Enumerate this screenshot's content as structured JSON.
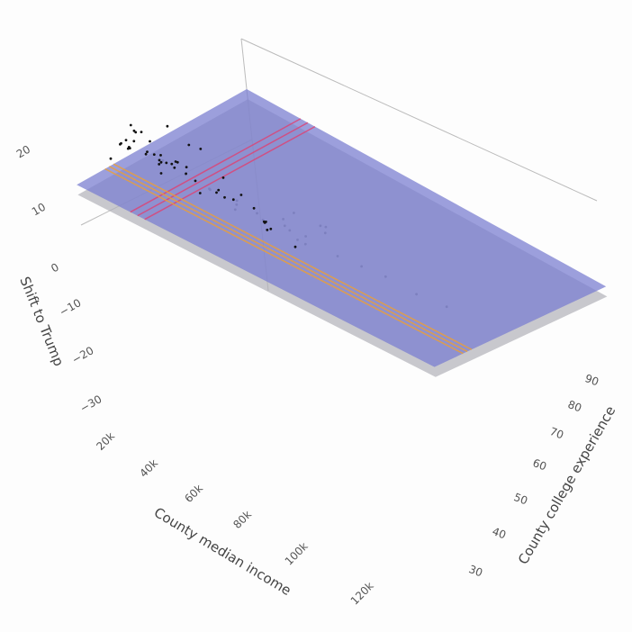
{
  "chart_data": {
    "type": "scatter3d",
    "axes": {
      "x": {
        "title": "County median income",
        "range": [
          20000,
          120000
        ],
        "ticks": [
          20000,
          40000,
          60000,
          80000,
          100000,
          120000
        ],
        "tick_labels": [
          "20k",
          "40k",
          "60k",
          "80k",
          "100k",
          "120k"
        ]
      },
      "y": {
        "title": "County college experience",
        "range": [
          30,
          90
        ],
        "ticks": [
          30,
          40,
          50,
          60,
          70,
          80,
          90
        ],
        "tick_labels": [
          "30",
          "40",
          "50",
          "60",
          "70",
          "80",
          "90"
        ]
      },
      "z": {
        "title": "Shift to Trump",
        "range": [
          -30,
          20
        ],
        "ticks": [
          20,
          10,
          0,
          -10,
          -20,
          -30
        ],
        "tick_labels": [
          "20",
          "10",
          "0",
          "-10",
          "-20",
          "-30"
        ]
      }
    },
    "surfaces": [
      {
        "color": "#b0b0b8",
        "opacity": 0.7,
        "corners_z": {
          "x0y0": 6,
          "x1y0": 2,
          "x0y1": 8,
          "x1y1": 1
        }
      },
      {
        "color": "#7b7fd0",
        "opacity": 0.75,
        "corners_z": {
          "x0y0": 8,
          "x1y0": 4,
          "x0y1": 10,
          "x1y1": 3
        }
      }
    ],
    "lines": [
      {
        "color": "#e04070",
        "along": "y",
        "x": 35000
      },
      {
        "color": "#f0a030",
        "along": "x",
        "y": 40
      }
    ],
    "points": {
      "color": "#111111",
      "x": [
        30,
        32,
        35,
        38,
        40,
        42,
        45,
        48,
        50,
        52,
        55,
        34,
        36,
        39,
        41,
        44,
        47,
        33,
        37,
        43,
        46,
        49,
        31,
        28,
        26,
        53,
        58,
        60,
        62,
        65,
        40,
        42,
        44,
        38,
        36,
        35,
        50,
        48,
        46,
        54,
        57,
        29,
        27,
        45,
        43,
        41,
        39,
        37,
        60,
        64,
        68,
        70,
        75,
        80,
        85,
        90,
        55,
        52,
        47,
        33,
        31,
        25,
        24,
        22,
        36,
        44,
        50,
        58,
        66,
        72
      ],
      "y": [
        35,
        38,
        40,
        42,
        36,
        44,
        39,
        41,
        37,
        43,
        45,
        48,
        33,
        32,
        46,
        50,
        34,
        52,
        31,
        30,
        47,
        49,
        36,
        40,
        42,
        51,
        55,
        46,
        44,
        41,
        60,
        58,
        62,
        54,
        56,
        65,
        57,
        66,
        70,
        63,
        68,
        44,
        38,
        35,
        33,
        31,
        37,
        39,
        48,
        52,
        50,
        58,
        60,
        62,
        66,
        70,
        72,
        75,
        74,
        46,
        50,
        45,
        55,
        40,
        30,
        32,
        33,
        36,
        40,
        42
      ],
      "z": [
        18,
        20,
        16,
        22,
        15,
        19,
        17,
        21,
        14,
        16,
        13,
        12,
        23,
        24,
        11,
        9,
        20,
        8,
        25,
        24,
        10,
        9,
        17,
        15,
        14,
        8,
        5,
        9,
        10,
        12,
        2,
        4,
        1,
        6,
        5,
        -2,
        3,
        0,
        -4,
        4,
        1,
        13,
        16,
        18,
        19,
        21,
        17,
        15,
        7,
        5,
        6,
        2,
        1,
        0,
        -3,
        -5,
        -1,
        -4,
        -6,
        12,
        10,
        14,
        7,
        11,
        22,
        21,
        19,
        16,
        11,
        9
      ]
    }
  }
}
